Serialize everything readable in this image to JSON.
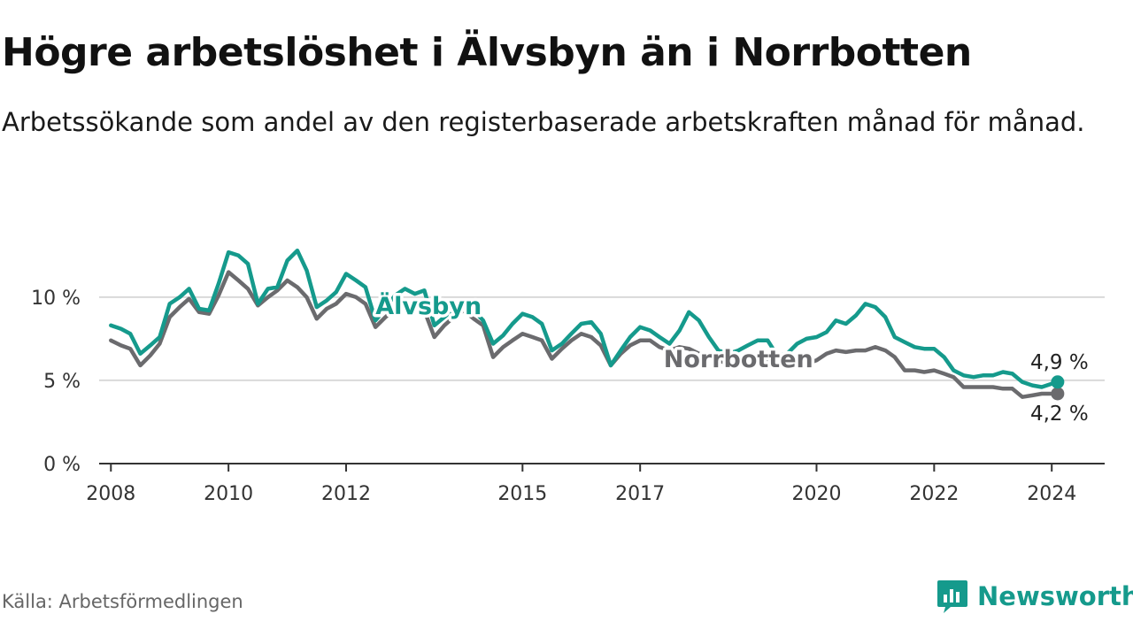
{
  "title": "Högre arbetslöshet i Älvsbyn än i Norrbotten",
  "subtitle": "Arbetssökande som andel av den registerbaserade arbetskraften månad för månad.",
  "source": "Källa: Arbetsförmedlingen",
  "brand": {
    "name": "Newsworthy",
    "icon": "newsworthy-logo-icon",
    "color": "#159a8c"
  },
  "chart_data": {
    "type": "line",
    "title": "Högre arbetslöshet i Älvsbyn än i Norrbotten",
    "xlabel": "",
    "ylabel": "",
    "xlim": [
      2007.8,
      2024.9
    ],
    "ylim": [
      0,
      13.5
    ],
    "y_ticks": [
      {
        "value": 0,
        "label": "0 %"
      },
      {
        "value": 5,
        "label": "5 %"
      },
      {
        "value": 10,
        "label": "10 %"
      }
    ],
    "x_ticks": [
      {
        "value": 2008,
        "label": "2008"
      },
      {
        "value": 2010,
        "label": "2010"
      },
      {
        "value": 2012,
        "label": "2012"
      },
      {
        "value": 2015,
        "label": "2015"
      },
      {
        "value": 2017,
        "label": "2017"
      },
      {
        "value": 2020,
        "label": "2020"
      },
      {
        "value": 2022,
        "label": "2022"
      },
      {
        "value": 2024,
        "label": "2024"
      }
    ],
    "series": [
      {
        "name": "Norrbotten",
        "color": "#6b6b6e",
        "end_label": "4,2 %",
        "inline_label": "Norrbotten",
        "points": [
          [
            2008.0,
            7.4
          ],
          [
            2008.17,
            7.1
          ],
          [
            2008.33,
            6.9
          ],
          [
            2008.5,
            5.9
          ],
          [
            2008.67,
            6.5
          ],
          [
            2008.83,
            7.2
          ],
          [
            2009.0,
            8.8
          ],
          [
            2009.17,
            9.4
          ],
          [
            2009.33,
            9.9
          ],
          [
            2009.5,
            9.1
          ],
          [
            2009.67,
            9.0
          ],
          [
            2009.83,
            10.1
          ],
          [
            2010.0,
            11.5
          ],
          [
            2010.17,
            11.0
          ],
          [
            2010.33,
            10.5
          ],
          [
            2010.5,
            9.5
          ],
          [
            2010.67,
            10.0
          ],
          [
            2010.83,
            10.4
          ],
          [
            2011.0,
            11.0
          ],
          [
            2011.17,
            10.6
          ],
          [
            2011.33,
            10.0
          ],
          [
            2011.5,
            8.7
          ],
          [
            2011.67,
            9.3
          ],
          [
            2011.83,
            9.6
          ],
          [
            2012.0,
            10.2
          ],
          [
            2012.17,
            10.0
          ],
          [
            2012.33,
            9.6
          ],
          [
            2012.5,
            8.2
          ],
          [
            2012.67,
            8.8
          ],
          [
            2012.83,
            9.3
          ],
          [
            2013.0,
            9.6
          ],
          [
            2013.17,
            9.4
          ],
          [
            2013.33,
            9.2
          ],
          [
            2013.5,
            7.6
          ],
          [
            2013.67,
            8.3
          ],
          [
            2013.83,
            8.8
          ],
          [
            2014.0,
            9.2
          ],
          [
            2014.17,
            8.7
          ],
          [
            2014.33,
            8.3
          ],
          [
            2014.5,
            6.4
          ],
          [
            2014.67,
            7.0
          ],
          [
            2014.83,
            7.4
          ],
          [
            2015.0,
            7.8
          ],
          [
            2015.17,
            7.6
          ],
          [
            2015.33,
            7.4
          ],
          [
            2015.5,
            6.3
          ],
          [
            2015.67,
            6.9
          ],
          [
            2015.83,
            7.4
          ],
          [
            2016.0,
            7.8
          ],
          [
            2016.17,
            7.6
          ],
          [
            2016.33,
            7.1
          ],
          [
            2016.5,
            5.9
          ],
          [
            2016.67,
            6.6
          ],
          [
            2016.83,
            7.1
          ],
          [
            2017.0,
            7.4
          ],
          [
            2017.17,
            7.4
          ],
          [
            2017.33,
            7.0
          ],
          [
            2017.5,
            6.8
          ],
          [
            2017.67,
            7.0
          ],
          [
            2017.83,
            6.9
          ],
          [
            2018.0,
            6.6
          ],
          [
            2018.17,
            6.4
          ],
          [
            2018.33,
            6.2
          ],
          [
            2018.5,
            6.0
          ],
          [
            2018.67,
            6.1
          ],
          [
            2018.83,
            6.2
          ],
          [
            2019.0,
            6.3
          ],
          [
            2019.17,
            6.1
          ],
          [
            2019.33,
            6.0
          ],
          [
            2019.5,
            5.9
          ],
          [
            2019.67,
            5.9
          ],
          [
            2019.83,
            6.0
          ],
          [
            2020.0,
            6.2
          ],
          [
            2020.17,
            6.6
          ],
          [
            2020.33,
            6.8
          ],
          [
            2020.5,
            6.7
          ],
          [
            2020.67,
            6.8
          ],
          [
            2020.83,
            6.8
          ],
          [
            2021.0,
            7.0
          ],
          [
            2021.17,
            6.8
          ],
          [
            2021.33,
            6.4
          ],
          [
            2021.5,
            5.6
          ],
          [
            2021.67,
            5.6
          ],
          [
            2021.83,
            5.5
          ],
          [
            2022.0,
            5.6
          ],
          [
            2022.17,
            5.4
          ],
          [
            2022.33,
            5.2
          ],
          [
            2022.5,
            4.6
          ],
          [
            2022.67,
            4.6
          ],
          [
            2022.83,
            4.6
          ],
          [
            2023.0,
            4.6
          ],
          [
            2023.17,
            4.5
          ],
          [
            2023.33,
            4.5
          ],
          [
            2023.5,
            4.0
          ],
          [
            2023.67,
            4.1
          ],
          [
            2023.83,
            4.2
          ],
          [
            2024.0,
            4.2
          ],
          [
            2024.1,
            4.2
          ]
        ]
      },
      {
        "name": "Älvsbyn",
        "color": "#159a8c",
        "end_label": "4,9 %",
        "inline_label": "Älvsbyn",
        "points": [
          [
            2008.0,
            8.3
          ],
          [
            2008.17,
            8.1
          ],
          [
            2008.33,
            7.8
          ],
          [
            2008.5,
            6.6
          ],
          [
            2008.67,
            7.1
          ],
          [
            2008.83,
            7.6
          ],
          [
            2009.0,
            9.6
          ],
          [
            2009.17,
            10.0
          ],
          [
            2009.33,
            10.5
          ],
          [
            2009.5,
            9.3
          ],
          [
            2009.67,
            9.2
          ],
          [
            2009.83,
            10.8
          ],
          [
            2010.0,
            12.7
          ],
          [
            2010.17,
            12.5
          ],
          [
            2010.33,
            12.0
          ],
          [
            2010.5,
            9.6
          ],
          [
            2010.67,
            10.5
          ],
          [
            2010.83,
            10.6
          ],
          [
            2011.0,
            12.2
          ],
          [
            2011.17,
            12.8
          ],
          [
            2011.33,
            11.6
          ],
          [
            2011.5,
            9.4
          ],
          [
            2011.67,
            9.8
          ],
          [
            2011.83,
            10.3
          ],
          [
            2012.0,
            11.4
          ],
          [
            2012.17,
            11.0
          ],
          [
            2012.33,
            10.6
          ],
          [
            2012.5,
            8.6
          ],
          [
            2012.67,
            9.3
          ],
          [
            2012.83,
            10.1
          ],
          [
            2013.0,
            10.5
          ],
          [
            2013.17,
            10.2
          ],
          [
            2013.33,
            10.4
          ],
          [
            2013.5,
            8.3
          ],
          [
            2013.67,
            8.8
          ],
          [
            2013.83,
            9.3
          ],
          [
            2014.0,
            9.7
          ],
          [
            2014.17,
            9.2
          ],
          [
            2014.33,
            8.6
          ],
          [
            2014.5,
            7.2
          ],
          [
            2014.67,
            7.7
          ],
          [
            2014.83,
            8.4
          ],
          [
            2015.0,
            9.0
          ],
          [
            2015.17,
            8.8
          ],
          [
            2015.33,
            8.4
          ],
          [
            2015.5,
            6.8
          ],
          [
            2015.67,
            7.2
          ],
          [
            2015.83,
            7.8
          ],
          [
            2016.0,
            8.4
          ],
          [
            2016.17,
            8.5
          ],
          [
            2016.33,
            7.8
          ],
          [
            2016.5,
            5.9
          ],
          [
            2016.67,
            6.8
          ],
          [
            2016.83,
            7.6
          ],
          [
            2017.0,
            8.2
          ],
          [
            2017.17,
            8.0
          ],
          [
            2017.33,
            7.6
          ],
          [
            2017.5,
            7.2
          ],
          [
            2017.67,
            8.0
          ],
          [
            2017.83,
            9.1
          ],
          [
            2018.0,
            8.6
          ],
          [
            2018.17,
            7.6
          ],
          [
            2018.33,
            6.8
          ],
          [
            2018.5,
            6.6
          ],
          [
            2018.67,
            6.8
          ],
          [
            2018.83,
            7.1
          ],
          [
            2019.0,
            7.4
          ],
          [
            2019.17,
            7.4
          ],
          [
            2019.33,
            6.5
          ],
          [
            2019.5,
            6.6
          ],
          [
            2019.67,
            7.2
          ],
          [
            2019.83,
            7.5
          ],
          [
            2020.0,
            7.6
          ],
          [
            2020.17,
            7.9
          ],
          [
            2020.33,
            8.6
          ],
          [
            2020.5,
            8.4
          ],
          [
            2020.67,
            8.9
          ],
          [
            2020.83,
            9.6
          ],
          [
            2021.0,
            9.4
          ],
          [
            2021.17,
            8.8
          ],
          [
            2021.33,
            7.6
          ],
          [
            2021.5,
            7.3
          ],
          [
            2021.67,
            7.0
          ],
          [
            2021.83,
            6.9
          ],
          [
            2022.0,
            6.9
          ],
          [
            2022.17,
            6.4
          ],
          [
            2022.33,
            5.6
          ],
          [
            2022.5,
            5.3
          ],
          [
            2022.67,
            5.2
          ],
          [
            2022.83,
            5.3
          ],
          [
            2023.0,
            5.3
          ],
          [
            2023.17,
            5.5
          ],
          [
            2023.33,
            5.4
          ],
          [
            2023.5,
            4.9
          ],
          [
            2023.67,
            4.7
          ],
          [
            2023.83,
            4.6
          ],
          [
            2024.0,
            4.8
          ],
          [
            2024.1,
            4.9
          ]
        ]
      }
    ]
  }
}
